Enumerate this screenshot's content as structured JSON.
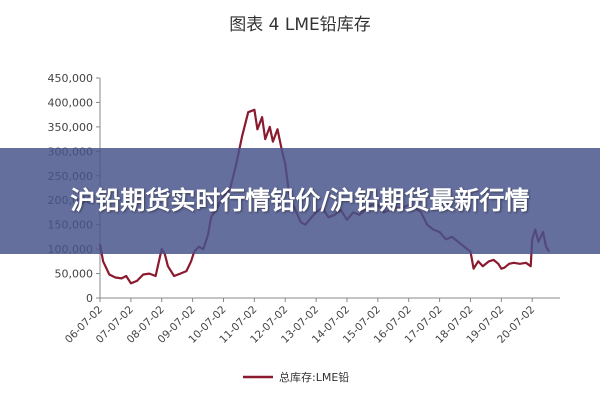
{
  "figure_title": "图表 4   LME铅库存",
  "banner": {
    "text": "沪铅期货实时行情铅价/沪铅期货最新行情"
  },
  "colors": {
    "line": "#8b1a2e",
    "axis": "#888888",
    "banner_bg": "#48548c",
    "banner_text": "#ffffff"
  },
  "chart_data": {
    "type": "line",
    "title": "图表 4   LME铅库存",
    "xlabel": "",
    "ylabel": "",
    "ylim": [
      0,
      450000
    ],
    "yticks": [
      "0",
      "50,000",
      "100,000",
      "150,000",
      "200,000",
      "250,000",
      "300,000",
      "350,000",
      "400,000",
      "450,000"
    ],
    "xticks": [
      "06-07-02",
      "07-07-02",
      "08-07-02",
      "09-07-02",
      "10-07-02",
      "11-07-02",
      "12-07-02",
      "13-07-02",
      "14-07-02",
      "15-07-02",
      "16-07-02",
      "17-07-02",
      "18-07-02",
      "19-07-02",
      "20-07-02"
    ],
    "legend": {
      "position": "bottom",
      "entries": [
        "总库存:LME铅"
      ]
    },
    "grid": false,
    "series": [
      {
        "name": "总库存:LME铅",
        "x": [
          2006.0,
          2006.1,
          2006.3,
          2006.5,
          2006.7,
          2006.85,
          2007.0,
          2007.2,
          2007.4,
          2007.6,
          2007.8,
          2008.0,
          2008.1,
          2008.2,
          2008.4,
          2008.6,
          2008.8,
          2008.95,
          2009.05,
          2009.2,
          2009.35,
          2009.5,
          2009.6,
          2009.8,
          2010.0,
          2010.2,
          2010.4,
          2010.6,
          2010.8,
          2011.0,
          2011.1,
          2011.25,
          2011.35,
          2011.5,
          2011.6,
          2011.75,
          2011.9,
          2012.0,
          2012.15,
          2012.3,
          2012.5,
          2012.65,
          2012.85,
          2013.0,
          2013.2,
          2013.4,
          2013.6,
          2013.8,
          2014.0,
          2014.2,
          2014.4,
          2014.6,
          2014.8,
          2015.0,
          2015.2,
          2015.4,
          2015.6,
          2015.8,
          2016.0,
          2016.2,
          2016.4,
          2016.6,
          2016.8,
          2017.0,
          2017.2,
          2017.4,
          2017.6,
          2017.8,
          2018.0,
          2018.1,
          2018.25,
          2018.4,
          2018.6,
          2018.75,
          2018.9,
          2019.0,
          2019.1,
          2019.25,
          2019.4,
          2019.6,
          2019.8,
          2019.95,
          2020.0,
          2020.1,
          2020.2,
          2020.35,
          2020.45,
          2020.55
        ],
        "values": [
          110000,
          75000,
          48000,
          42000,
          40000,
          45000,
          30000,
          35000,
          48000,
          50000,
          45000,
          100000,
          90000,
          65000,
          45000,
          50000,
          55000,
          75000,
          95000,
          105000,
          100000,
          130000,
          165000,
          185000,
          210000,
          220000,
          270000,
          330000,
          380000,
          385000,
          345000,
          370000,
          325000,
          350000,
          320000,
          345000,
          300000,
          275000,
          200000,
          185000,
          155000,
          150000,
          165000,
          175000,
          185000,
          165000,
          170000,
          180000,
          160000,
          175000,
          170000,
          180000,
          190000,
          190000,
          175000,
          180000,
          185000,
          185000,
          190000,
          185000,
          175000,
          150000,
          140000,
          135000,
          120000,
          125000,
          115000,
          105000,
          95000,
          60000,
          75000,
          65000,
          75000,
          78000,
          70000,
          60000,
          62000,
          70000,
          72000,
          70000,
          72000,
          65000,
          120000,
          140000,
          115000,
          135000,
          105000,
          95000
        ]
      }
    ]
  }
}
